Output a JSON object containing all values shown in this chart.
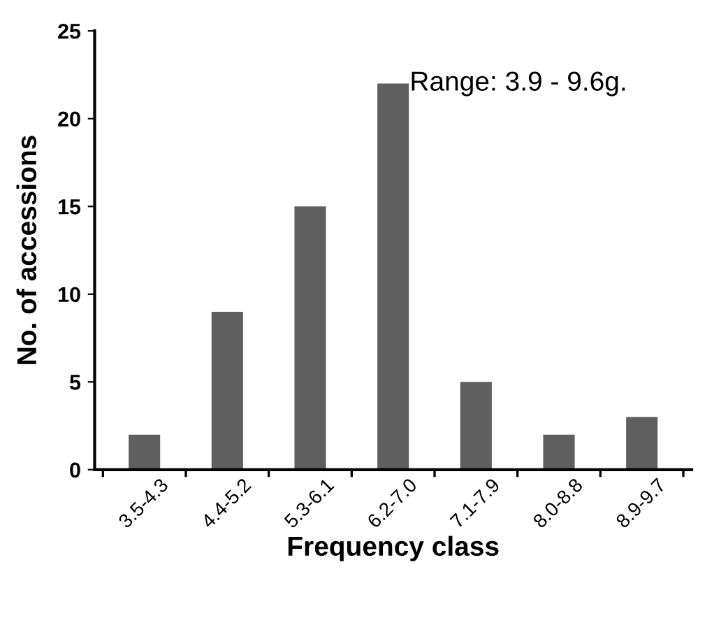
{
  "chart_data": {
    "type": "bar",
    "categories": [
      "3.5-4.3",
      "4.4-5.2",
      "5.3-6.1",
      "6.2-7.0",
      "7.1-7.9",
      "8.0-8.8",
      "8.9-9.7"
    ],
    "values": [
      2,
      9,
      15,
      22,
      5,
      2,
      3
    ],
    "color": "#5f5f5f",
    "xlabel": "Frequency class",
    "ylabel": "No. of accessions",
    "ylim": [
      0,
      25
    ],
    "yticks": [
      0,
      5,
      10,
      15,
      20,
      25
    ],
    "annotations": [
      "Range: 3.9 - 9.6g."
    ],
    "grid": false
  }
}
